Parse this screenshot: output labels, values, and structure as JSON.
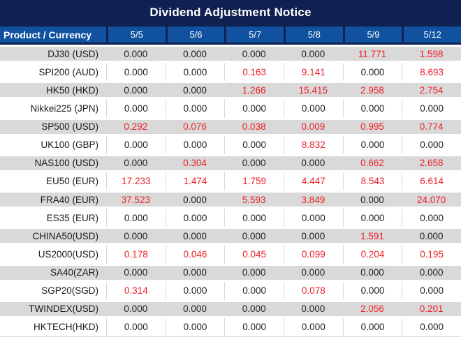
{
  "title": "Dividend Adjustment Notice",
  "colors": {
    "title_navy": "#0e2150",
    "header_blue": "#1052a0",
    "row_alt_gray": "#d9d9d9",
    "value_black": "#212121",
    "value_red": "#ee1f26",
    "header_text": "#ffffff"
  },
  "display_decimals": 3,
  "chart_data": {
    "type": "table",
    "title": "Dividend Adjustment Notice",
    "columns": [
      "Product / Currency",
      "5/5",
      "5/6",
      "5/7",
      "5/8",
      "5/9",
      "5/12"
    ],
    "rows": [
      [
        "DJ30 (USD)",
        0.0,
        0.0,
        0.0,
        0.0,
        11.771,
        1.598
      ],
      [
        "SPI200 (AUD)",
        0.0,
        0.0,
        0.163,
        9.141,
        0.0,
        8.693
      ],
      [
        "HK50 (HKD)",
        0.0,
        0.0,
        1.266,
        15.415,
        2.958,
        2.754
      ],
      [
        "Nikkei225 (JPN)",
        0.0,
        0.0,
        0.0,
        0.0,
        0.0,
        0.0
      ],
      [
        "SP500 (USD)",
        0.292,
        0.076,
        0.038,
        0.009,
        0.995,
        0.774
      ],
      [
        "UK100 (GBP)",
        0.0,
        0.0,
        0.0,
        8.832,
        0.0,
        0.0
      ],
      [
        "NAS100 (USD)",
        0.0,
        0.304,
        0.0,
        0.0,
        0.662,
        2.658
      ],
      [
        "EU50 (EUR)",
        17.233,
        1.474,
        1.759,
        4.447,
        8.543,
        6.614
      ],
      [
        "FRA40 (EUR)",
        37.523,
        0.0,
        5.593,
        3.849,
        0.0,
        24.07
      ],
      [
        "ES35 (EUR)",
        0.0,
        0.0,
        0.0,
        0.0,
        0.0,
        0.0
      ],
      [
        "CHINA50(USD)",
        0.0,
        0.0,
        0.0,
        0.0,
        1.591,
        0.0
      ],
      [
        "US2000(USD)",
        0.178,
        0.046,
        0.045,
        0.099,
        0.204,
        0.195
      ],
      [
        "SA40(ZAR)",
        0.0,
        0.0,
        0.0,
        0.0,
        0.0,
        0.0
      ],
      [
        "SGP20(SGD)",
        0.314,
        0.0,
        0.0,
        0.078,
        0.0,
        0.0
      ],
      [
        "TWINDEX(USD)",
        0.0,
        0.0,
        0.0,
        0.0,
        2.056,
        0.201
      ],
      [
        "HKTECH(HKD)",
        0.0,
        0.0,
        0.0,
        0.0,
        0.0,
        0.0
      ]
    ],
    "value_color_rule": "non-zero values rendered red, zero values rendered black",
    "row_striping": "odd rows gray, even rows white"
  }
}
